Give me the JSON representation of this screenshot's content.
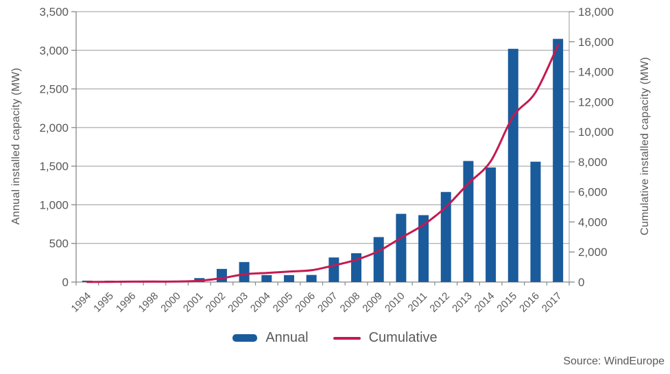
{
  "chart_data": {
    "type": "combo-bar-line",
    "title": "",
    "categories": [
      "1994",
      "1995",
      "1996",
      "1998",
      "2000",
      "2001",
      "2002",
      "2003",
      "2004",
      "2005",
      "2006",
      "2007",
      "2008",
      "2009",
      "2010",
      "2011",
      "2012",
      "2013",
      "2014",
      "2015",
      "2016",
      "2017"
    ],
    "series": [
      {
        "name": "Annual",
        "type": "bar",
        "axis": "left",
        "values": [
          2,
          5,
          17,
          3,
          4,
          51,
          170,
          259,
          90,
          90,
          92,
          318,
          373,
          582,
          883,
          866,
          1166,
          1567,
          1483,
          3019,
          1558,
          3148
        ]
      },
      {
        "name": "Cumulative",
        "type": "line",
        "axis": "right",
        "values": [
          7,
          12,
          29,
          32,
          36,
          87,
          257,
          516,
          606,
          696,
          788,
          1106,
          1479,
          2063,
          2946,
          3813,
          4995,
          6562,
          8045,
          11027,
          12631,
          15780
        ]
      }
    ],
    "left_axis": {
      "label": "Annual installed capacity (MW)",
      "min": 0,
      "max": 3500,
      "tick_step": 500
    },
    "right_axis": {
      "label": "Cumulative installed capacity (MW)",
      "min": 0,
      "max": 18000,
      "tick_step": 2000
    },
    "grid": "horizontal",
    "legend_position": "bottom",
    "colors": {
      "bar": "#1A5B9C",
      "line": "#C41A50",
      "grid": "#97999B",
      "axis": "#85878A",
      "text": "#58595B"
    }
  },
  "source_note": "Source: WindEurope"
}
